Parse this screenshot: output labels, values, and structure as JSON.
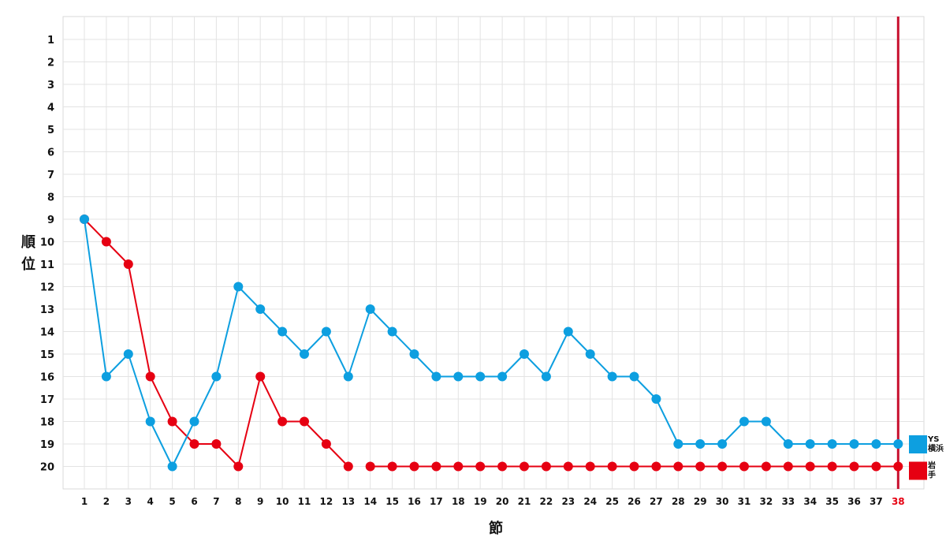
{
  "chart_data": {
    "type": "line",
    "xlabel": "節",
    "ylabel": "順位",
    "x": [
      1,
      2,
      3,
      4,
      5,
      6,
      7,
      8,
      9,
      10,
      11,
      12,
      13,
      14,
      15,
      16,
      17,
      18,
      19,
      20,
      21,
      22,
      23,
      24,
      25,
      26,
      27,
      28,
      29,
      30,
      31,
      32,
      33,
      34,
      35,
      36,
      37,
      38
    ],
    "xlim": [
      1,
      38
    ],
    "ylim": [
      1,
      20
    ],
    "y_inverted": true,
    "y_ticks": [
      1,
      2,
      3,
      4,
      5,
      6,
      7,
      8,
      9,
      10,
      11,
      12,
      13,
      14,
      15,
      16,
      17,
      18,
      19,
      20
    ],
    "current_round": 38,
    "grid": true,
    "series": [
      {
        "name": "岩手",
        "legend_lines": [
          "岩",
          "手"
        ],
        "color": "#e60012",
        "values": [
          9,
          10,
          11,
          16,
          18,
          19,
          19,
          20,
          16,
          18,
          18,
          19,
          20,
          20,
          20,
          20,
          20,
          20,
          20,
          20,
          20,
          20,
          20,
          20,
          20,
          20,
          20,
          20,
          20,
          20,
          20,
          20,
          20,
          20,
          20,
          20,
          20,
          20
        ],
        "gaps_after": [
          13
        ]
      },
      {
        "name": "YS横浜",
        "legend_lines": [
          "YS",
          "横浜"
        ],
        "color": "#0d9fe0",
        "values": [
          9,
          16,
          15,
          18,
          20,
          18,
          16,
          12,
          13,
          14,
          15,
          14,
          16,
          13,
          14,
          15,
          16,
          16,
          16,
          16,
          15,
          16,
          14,
          15,
          16,
          16,
          17,
          19,
          19,
          19,
          18,
          18,
          19,
          19,
          19,
          19,
          19,
          19
        ],
        "gaps_after": []
      }
    ],
    "current_line_color": "#c8102e",
    "legend": "right"
  }
}
